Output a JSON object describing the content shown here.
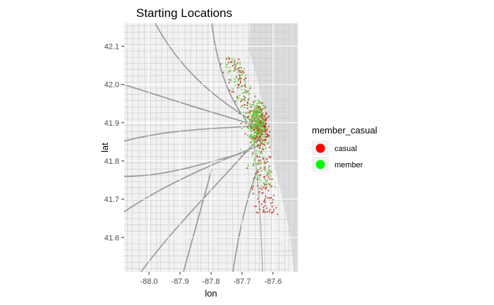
{
  "chart_data": {
    "type": "scatter",
    "title": "Starting Locations",
    "xlabel": "lon",
    "ylabel": "lat",
    "xlim": [
      -88.08,
      -87.52
    ],
    "ylim": [
      41.51,
      42.16
    ],
    "xticks": [
      -88.0,
      -87.9,
      -87.8,
      -87.7,
      -87.6
    ],
    "xtick_labels": [
      "-88.0",
      "-87.9",
      "-87.8",
      "-87.7",
      "-87.6"
    ],
    "yticks": [
      41.6,
      41.7,
      41.8,
      41.9,
      42.0,
      42.1
    ],
    "ytick_labels": [
      "41.6",
      "41.7",
      "41.8",
      "41.9",
      "42.0",
      "42.1"
    ],
    "grid": true,
    "background": "street-map (Chicago)",
    "legend": {
      "title": "member_casual",
      "position": "right",
      "entries": [
        {
          "label": "casual",
          "color": "#ff0000"
        },
        {
          "label": "member",
          "color": "#00ff00"
        }
      ]
    },
    "series": [
      {
        "name": "casual",
        "color": "#ff0000",
        "n_points": 420,
        "dense_center": [
          -87.64,
          41.89
        ],
        "lon_range": [
          -87.78,
          -87.54
        ],
        "lat_range": [
          41.66,
          42.07
        ]
      },
      {
        "name": "member",
        "color": "#00ff00",
        "n_points": 420,
        "dense_center": [
          -87.65,
          41.9
        ],
        "lon_range": [
          -87.75,
          -87.56
        ],
        "lat_range": [
          41.73,
          42.07
        ]
      }
    ]
  }
}
